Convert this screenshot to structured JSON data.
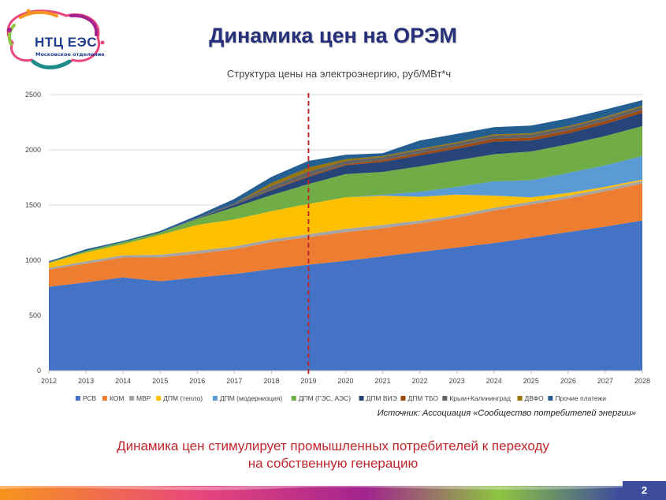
{
  "logo": {
    "name": "НТЦ ЕЭС",
    "subtitle": "Московское отделение"
  },
  "page_title": "Динамика цен на ОРЭМ",
  "source": "Источник: Ассоциация «Сообщество потребителей энергии»",
  "conclusion": {
    "line1": "Динамика цен стимулирует промышленных потребителей к переходу",
    "line2": "на собственную генерацию"
  },
  "page_number": "2",
  "colors": {
    "title": "#27307a",
    "conclusion": "#c0272d",
    "marker_line": "#c0272d",
    "footer": [
      "#f7941d",
      "#e8467c",
      "#a2238e",
      "#8dc63f",
      "#3e4c9c"
    ]
  },
  "chart_data": {
    "type": "area",
    "stacked": true,
    "title": "Структура цены на электроэнергию, руб/МВт*ч",
    "xlabel": "",
    "ylabel": "",
    "x": [
      "2012",
      "2013",
      "2014",
      "2015",
      "2016",
      "2017",
      "2018",
      "2019",
      "2020",
      "2021",
      "2022",
      "2023",
      "2024",
      "2025",
      "2026",
      "2027",
      "2028"
    ],
    "ylim": [
      0,
      2500
    ],
    "yticks": [
      "0",
      "500",
      "1000",
      "1500",
      "2000",
      "2500"
    ],
    "grid": true,
    "legend_position": "bottom",
    "reference_line": {
      "x": "2019",
      "style": "dashed"
    },
    "series": [
      {
        "name": "РСВ",
        "color": "#4472c4",
        "values": [
          760,
          800,
          845,
          810,
          845,
          875,
          920,
          960,
          995,
          1035,
          1075,
          1115,
          1155,
          1205,
          1255,
          1305,
          1360
        ]
      },
      {
        "name": "КОМ",
        "color": "#ed7d31",
        "values": [
          155,
          170,
          180,
          215,
          215,
          225,
          245,
          250,
          260,
          255,
          260,
          270,
          295,
          300,
          305,
          320,
          335
        ]
      },
      {
        "name": "МВР",
        "color": "#a5a5a5",
        "values": [
          15,
          20,
          20,
          25,
          25,
          25,
          25,
          25,
          30,
          30,
          25,
          25,
          25,
          25,
          25,
          25,
          25
        ]
      },
      {
        "name": "ДПМ (тепло)",
        "color": "#ffc000",
        "values": [
          45,
          80,
          100,
          180,
          235,
          245,
          255,
          275,
          285,
          265,
          215,
          185,
          110,
          40,
          25,
          15,
          10
        ]
      },
      {
        "name": "ДПМ (модернизция)",
        "color": "#5b9bd5",
        "values": [
          0,
          0,
          0,
          0,
          0,
          0,
          0,
          0,
          0,
          10,
          45,
          70,
          130,
          155,
          180,
          195,
          215
        ]
      },
      {
        "name": "ДПМ (ГЭС, АЭС)",
        "color": "#70ad47",
        "values": [
          5,
          15,
          20,
          20,
          55,
          110,
          145,
          180,
          210,
          205,
          230,
          240,
          245,
          260,
          260,
          265,
          270
        ]
      },
      {
        "name": "ДПМ ВИЭ",
        "color": "#264478",
        "values": [
          0,
          0,
          0,
          0,
          5,
          20,
          45,
          65,
          80,
          90,
          100,
          105,
          115,
          100,
          100,
          110,
          120
        ]
      },
      {
        "name": "ДПМ ТБО",
        "color": "#9e480e",
        "values": [
          0,
          0,
          0,
          0,
          0,
          0,
          5,
          10,
          10,
          15,
          20,
          20,
          25,
          25,
          25,
          25,
          25
        ]
      },
      {
        "name": "Крым+Калининград",
        "color": "#636363",
        "values": [
          0,
          0,
          0,
          0,
          5,
          15,
          35,
          40,
          30,
          30,
          30,
          30,
          30,
          30,
          30,
          30,
          30
        ]
      },
      {
        "name": "ДВФО",
        "color": "#997300",
        "values": [
          0,
          0,
          0,
          0,
          0,
          0,
          25,
          35,
          15,
          10,
          10,
          10,
          10,
          10,
          10,
          10,
          10
        ]
      },
      {
        "name": "Прочие платежи",
        "color": "#255e91",
        "values": [
          10,
          15,
          10,
          15,
          20,
          40,
          55,
          60,
          40,
          25,
          75,
          75,
          65,
          70,
          70,
          65,
          50
        ]
      }
    ]
  }
}
